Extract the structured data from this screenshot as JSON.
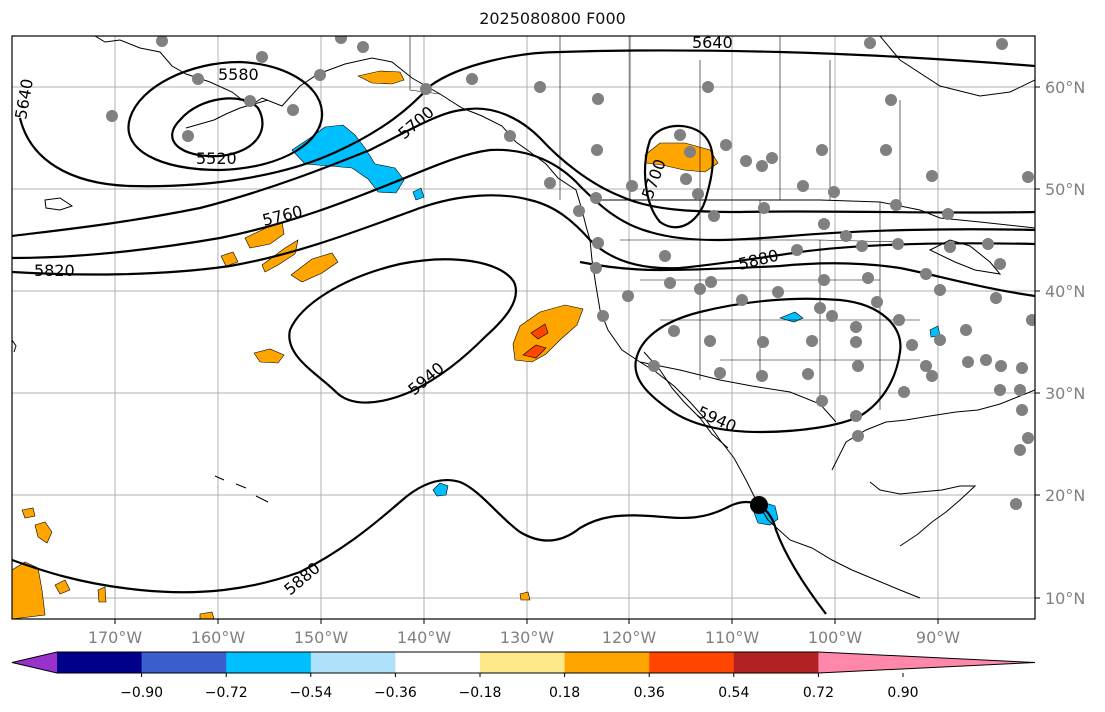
{
  "title": "2025080800 F000",
  "map": {
    "lon_labels": [
      "170°W",
      "160°W",
      "150°W",
      "140°W",
      "130°W",
      "120°W",
      "110°W",
      "100°W",
      "90°W"
    ],
    "lat_labels": [
      "60°N",
      "50°N",
      "40°N",
      "30°N",
      "20°N",
      "10°N"
    ],
    "contour_labels": [
      "5520",
      "5580",
      "5640",
      "5640",
      "5700",
      "5700",
      "5760",
      "5820",
      "5880",
      "5880",
      "5940",
      "5940"
    ]
  },
  "colorbar": {
    "tick_labels": [
      "−0.90",
      "−0.72",
      "−0.54",
      "−0.36",
      "−0.18",
      "0.18",
      "0.36",
      "0.54",
      "0.72",
      "0.90"
    ],
    "colors": [
      "#9932cc",
      "#00008b",
      "#3a5fcd",
      "#00bfff",
      "#aee2fa",
      "#ffffff",
      "#fde88a",
      "#ffa500",
      "#ff4500",
      "#b22222",
      "#ff88aa"
    ]
  }
}
